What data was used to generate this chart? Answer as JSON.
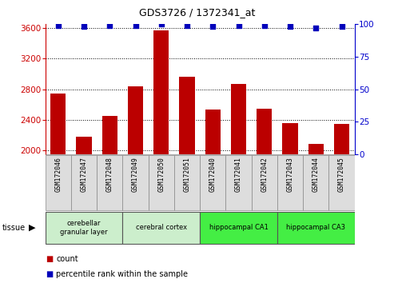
{
  "title": "GDS3726 / 1372341_at",
  "samples": [
    "GSM172046",
    "GSM172047",
    "GSM172048",
    "GSM172049",
    "GSM172050",
    "GSM172051",
    "GSM172040",
    "GSM172041",
    "GSM172042",
    "GSM172043",
    "GSM172044",
    "GSM172045"
  ],
  "counts": [
    2740,
    2175,
    2450,
    2840,
    3570,
    2960,
    2530,
    2870,
    2545,
    2360,
    2080,
    2350
  ],
  "percentiles": [
    99,
    98,
    99,
    99,
    100,
    99,
    98,
    99,
    99,
    98,
    97,
    98
  ],
  "ylim_left": [
    1950,
    3650
  ],
  "ylim_right": [
    0,
    100
  ],
  "yticks_left": [
    2000,
    2400,
    2800,
    3200,
    3600
  ],
  "yticks_right": [
    0,
    25,
    50,
    75,
    100
  ],
  "bar_color": "#bb0000",
  "dot_color": "#0000bb",
  "tissue_groups": [
    {
      "label": "cerebellar\ngranular layer",
      "start": 0,
      "end": 3,
      "color": "#cceecc"
    },
    {
      "label": "cerebral cortex",
      "start": 3,
      "end": 6,
      "color": "#cceecc"
    },
    {
      "label": "hippocampal CA1",
      "start": 6,
      "end": 9,
      "color": "#44ee44"
    },
    {
      "label": "hippocampal CA3",
      "start": 9,
      "end": 12,
      "color": "#44ee44"
    }
  ],
  "sample_box_color": "#dddddd",
  "left_tick_color": "#cc0000",
  "right_tick_color": "#0000cc",
  "grid_color": "#000000",
  "bg_color": "#ffffff",
  "tissue_label": "tissue",
  "legend_count_label": "count",
  "legend_pct_label": "percentile rank within the sample",
  "n": 12
}
